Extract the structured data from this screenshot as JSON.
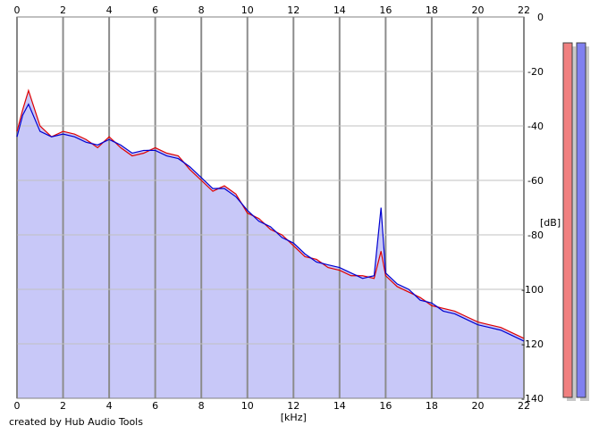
{
  "chart_data": {
    "type": "line",
    "xlabel": "[kHz]",
    "ylabel": "[dB]",
    "xlim": [
      0,
      22
    ],
    "ylim": [
      -140,
      0
    ],
    "x_ticks": [
      0,
      2,
      4,
      6,
      8,
      10,
      12,
      14,
      16,
      18,
      20,
      22
    ],
    "y_ticks": [
      0,
      -20,
      -40,
      -60,
      -80,
      -100,
      -120,
      -140
    ],
    "grid": true,
    "series": [
      {
        "color": "#e00000",
        "x": [
          0,
          0.25,
          0.5,
          1,
          1.5,
          2,
          2.5,
          3,
          3.5,
          4,
          4.5,
          5,
          5.5,
          6,
          6.5,
          7,
          7.5,
          8,
          8.5,
          9,
          9.5,
          10,
          10.5,
          11,
          11.5,
          12,
          12.5,
          13,
          13.5,
          14,
          14.5,
          15,
          15.5,
          15.8,
          16,
          16.5,
          17,
          17.5,
          18,
          18.5,
          19,
          19.5,
          20,
          20.5,
          21,
          21.5,
          22
        ],
        "y": [
          -42,
          -34,
          -27,
          -40,
          -44,
          -42,
          -43,
          -45,
          -48,
          -44,
          -48,
          -51,
          -50,
          -48,
          -50,
          -51,
          -56,
          -60,
          -64,
          -62,
          -65,
          -72,
          -74,
          -78,
          -80,
          -84,
          -88,
          -89,
          -92,
          -93,
          -95,
          -95,
          -96,
          -86,
          -95,
          -99,
          -101,
          -103,
          -106,
          -107,
          -108,
          -110,
          -112,
          -113,
          -114,
          -116,
          -118
        ]
      },
      {
        "color": "#0000d0",
        "x": [
          0,
          0.25,
          0.5,
          1,
          1.5,
          2,
          2.5,
          3,
          3.5,
          4,
          4.5,
          5,
          5.5,
          6,
          6.5,
          7,
          7.5,
          8,
          8.5,
          9,
          9.5,
          10,
          10.5,
          11,
          11.5,
          12,
          12.5,
          13,
          13.5,
          14,
          14.5,
          15,
          15.5,
          15.8,
          16,
          16.5,
          17,
          17.5,
          18,
          18.5,
          19,
          19.5,
          20,
          20.5,
          21,
          21.5,
          22
        ],
        "y": [
          -44,
          -36,
          -32,
          -42,
          -44,
          -43,
          -44,
          -46,
          -47,
          -45,
          -47,
          -50,
          -49,
          -49,
          -51,
          -52,
          -55,
          -59,
          -63,
          -63,
          -66,
          -71,
          -75,
          -77,
          -81,
          -83,
          -87,
          -90,
          -91,
          -92,
          -94,
          -96,
          -95,
          -70,
          -94,
          -98,
          -100,
          -104,
          -105,
          -108,
          -109,
          -111,
          -113,
          -114,
          -115,
          -117,
          -119
        ]
      }
    ],
    "fill_color": "#c8c8f8",
    "level_meters": [
      {
        "color": "#f08080",
        "level_db": 0
      },
      {
        "color": "#8080f0",
        "level_db": 0
      }
    ]
  },
  "footer": {
    "credit": "created by Hub Audio Tools"
  }
}
